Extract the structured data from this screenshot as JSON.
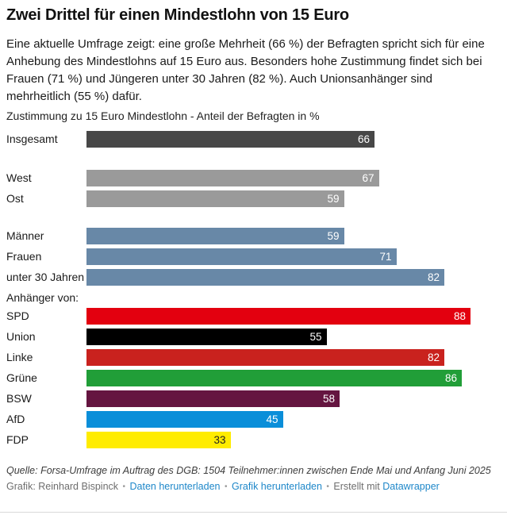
{
  "header": {
    "title": "Zwei Drittel für einen Mindestlohn von 15 Euro",
    "description": "Eine aktuelle Umfrage zeigt: eine große Mehrheit (66 %) der Befragten spricht sich für eine Anhebung des Mindestlohns auf 15 Euro aus. Besonders hohe Zustimmung findet sich bei Frauen (71 %) und Jüngeren unter 30 Jahren (82 %). Auch Unionsanhänger sind mehrheitlich (55 %) dafür.",
    "subtitle": "Zustimmung zu 15 Euro Mindestlohn - Anteil der Befragten in %"
  },
  "chart_data": {
    "type": "bar",
    "orientation": "horizontal",
    "title": "Zustimmung zu 15 Euro Mindestlohn - Anteil der Befragten in %",
    "value_unit": "%",
    "xlim": [
      0,
      88
    ],
    "grid": false,
    "legend": "none",
    "categories": [
      "Insgesamt",
      "West",
      "Ost",
      "Männer",
      "Frauen",
      "unter 30 Jahren",
      "SPD",
      "Union",
      "Linke",
      "Grüne",
      "BSW",
      "AfD",
      "FDP"
    ],
    "values": [
      66,
      67,
      59,
      59,
      71,
      82,
      88,
      55,
      82,
      86,
      58,
      45,
      33
    ],
    "section_label": "Anhänger von:",
    "rows": [
      {
        "id": "insgesamt",
        "label": "Insgesamt",
        "value": 66,
        "color": "#474747",
        "value_color": "#ffffff",
        "gap_before": 0
      },
      {
        "id": "west",
        "label": "West",
        "value": 67,
        "color": "#9a9a9a",
        "value_color": "#ffffff",
        "gap_before": 28
      },
      {
        "id": "ost",
        "label": "Ost",
        "value": 59,
        "color": "#9a9a9a",
        "value_color": "#ffffff",
        "gap_before": 0
      },
      {
        "id": "maenner",
        "label": "Männer",
        "value": 59,
        "color": "#6888a7",
        "value_color": "#ffffff",
        "gap_before": 26
      },
      {
        "id": "frauen",
        "label": "Frauen",
        "value": 71,
        "color": "#6888a7",
        "value_color": "#ffffff",
        "gap_before": 0
      },
      {
        "id": "unter-30-jahren",
        "label": "unter 30 Jahren",
        "value": 82,
        "color": "#6888a7",
        "value_color": "#ffffff",
        "gap_before": 0
      },
      {
        "id": "anhaenger-von",
        "section_label": "Anhänger von:",
        "gap_before": 1
      },
      {
        "id": "spd",
        "label": "SPD",
        "value": 88,
        "color": "#e3000f",
        "value_color": "#ffffff",
        "gap_before": 0
      },
      {
        "id": "union",
        "label": "Union",
        "value": 55,
        "color": "#000000",
        "value_color": "#ffffff",
        "gap_before": 0
      },
      {
        "id": "linke",
        "label": "Linke",
        "value": 82,
        "color": "#c9221e",
        "value_color": "#ffffff",
        "gap_before": 0
      },
      {
        "id": "gruene",
        "label": "Grüne",
        "value": 86,
        "color": "#219e38",
        "value_color": "#ffffff",
        "gap_before": 0
      },
      {
        "id": "bsw",
        "label": "BSW",
        "value": 58,
        "color": "#651540",
        "value_color": "#ffffff",
        "gap_before": 0
      },
      {
        "id": "afd",
        "label": "AfD",
        "value": 45,
        "color": "#0a8ed9",
        "value_color": "#ffffff",
        "gap_before": 0
      },
      {
        "id": "fdp",
        "label": "FDP",
        "value": 33,
        "color": "#ffec00",
        "value_color": "#222222",
        "gap_before": 0
      }
    ]
  },
  "footer": {
    "source": "Quelle: Forsa-Umfrage im Auftrag des DGB: 1504 Teilnehmer:innen zwischen Ende Mai und Anfang Juni 2025",
    "credit": "Grafik: Reinhard Bispinck",
    "separator": "•",
    "link_download_data": "Daten herunterladen",
    "link_download_graphic": "Grafik herunterladen",
    "created_with": "Erstellt mit",
    "datawrapper_link": "Datawrapper",
    "link_color": "#1e87c9"
  }
}
